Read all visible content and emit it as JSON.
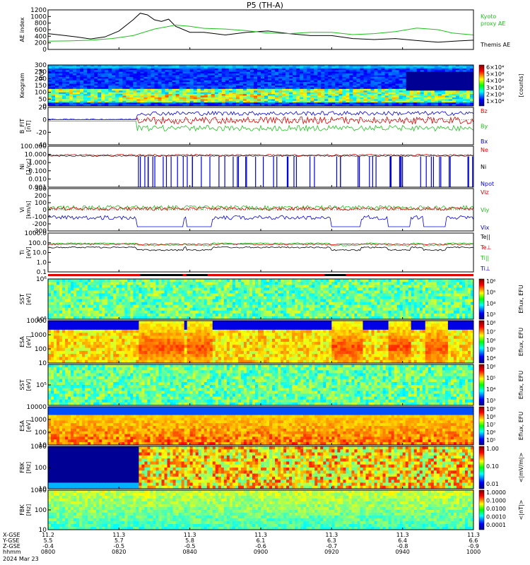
{
  "title": "P5 (TH-A)",
  "colors": {
    "green": "#20c020",
    "black": "#000000",
    "red": "#e00000",
    "blue": "#0000e0",
    "bg": "#ffffff"
  },
  "chart_data": {
    "type": "line",
    "x_ticks": [
      "0800",
      "0820",
      "0840",
      "0900",
      "0920",
      "0940",
      "1000"
    ],
    "footer": {
      "rows": [
        {
          "label": "X-GSE",
          "values": [
            "11.2",
            "11.3",
            "11.3",
            "11.3",
            "11.3",
            "11.3",
            "11.3"
          ]
        },
        {
          "label": "Y-GSE",
          "values": [
            "5.5",
            "5.7",
            "5.8",
            "6.1",
            "6.3",
            "6.4",
            "6.6"
          ]
        },
        {
          "label": "Z-GSE",
          "values": [
            "-0.4",
            "-0.5",
            "-0.5",
            "-0.6",
            "-0.7",
            "-0.8",
            "-0.9"
          ]
        },
        {
          "label": "hhmm",
          "values": [
            "0800",
            "0820",
            "0840",
            "0900",
            "0920",
            "0940",
            "1000"
          ]
        }
      ],
      "date": "2024 Mar 23"
    },
    "panels": [
      {
        "name": "AE index",
        "ylabel": "AE index",
        "ticks": [
          "1200",
          "1000",
          "800",
          "600",
          "400",
          "200",
          "0"
        ],
        "ylim": [
          0,
          1200
        ],
        "legend": [
          {
            "text": "Kyoto",
            "color": "#20c020"
          },
          {
            "text": "proxy AE",
            "color": "#20c020"
          },
          {
            "text": "Themis AE",
            "color": "#000000"
          }
        ],
        "series": [
          {
            "name": "Themis AE",
            "color": "#000000",
            "x": [
              0,
              4,
              8,
              12,
              16,
              20,
              24,
              26,
              28,
              30,
              32,
              34,
              36,
              40,
              44,
              50,
              56,
              62,
              68,
              74,
              80,
              86,
              92,
              98,
              104,
              110,
              116,
              120
            ],
            "y": [
              480,
              430,
              380,
              320,
              380,
              560,
              900,
              1100,
              1050,
              900,
              850,
              920,
              700,
              520,
              520,
              440,
              520,
              560,
              480,
              420,
              420,
              330,
              300,
              330,
              270,
              220,
              260,
              280
            ]
          },
          {
            "name": "Kyoto proxy AE",
            "color": "#20c020",
            "x": [
              0,
              6,
              12,
              18,
              24,
              30,
              36,
              40,
              44,
              50,
              56,
              62,
              68,
              74,
              80,
              86,
              92,
              98,
              104,
              110,
              114,
              120
            ],
            "y": [
              250,
              260,
              280,
              330,
              420,
              620,
              740,
              700,
              640,
              620,
              570,
              500,
              480,
              520,
              520,
              450,
              480,
              540,
              650,
              600,
              500,
              440
            ]
          }
        ]
      },
      {
        "name": "Keogram",
        "ylabel": "Keogram",
        "ticks": [
          "300",
          "250",
          "200",
          "150",
          "100",
          "50",
          "0"
        ],
        "ylim": [
          0,
          300
        ],
        "top_label": "ROI",
        "colorbar": {
          "labels": [
            "6×10⁴",
            "5×10⁴",
            "4×10⁴",
            "3×10⁴",
            "2×10⁴",
            "1×10⁴"
          ],
          "unit": "[counts]"
        }
      },
      {
        "name": "B FIT",
        "ylabel": "B_FIT",
        "units": "[nT]",
        "ticks": [
          "20",
          "0",
          "-20",
          "-40"
        ],
        "ylim": [
          -40,
          20
        ],
        "legend": [
          {
            "text": "Bz",
            "color": "#e00000"
          },
          {
            "text": "By",
            "color": "#20c020"
          },
          {
            "text": "Bx",
            "color": "#0000e0"
          }
        ]
      },
      {
        "name": "Ni",
        "ylabel": "Ni",
        "units": "[1/cc]",
        "ticks": [
          "100.000",
          "10.000",
          "1.000",
          "0.100",
          "0.010",
          "0.001"
        ],
        "ylim": [
          0.001,
          100
        ],
        "legend": [
          {
            "text": "Ne",
            "color": "#e00000"
          },
          {
            "text": "Ni",
            "color": "#000000"
          },
          {
            "text": "Npot",
            "color": "#0000e0"
          }
        ]
      },
      {
        "name": "Vi",
        "ylabel": "Vi",
        "units": "[km/s]",
        "ticks": [
          "300",
          "200",
          "100",
          "0",
          "-100",
          "-200",
          "-300"
        ],
        "ylim": [
          -300,
          300
        ],
        "legend": [
          {
            "text": "Viz",
            "color": "#e00000"
          },
          {
            "text": "Viy",
            "color": "#20c020"
          },
          {
            "text": "Vix",
            "color": "#0000e0"
          }
        ]
      },
      {
        "name": "Ti",
        "ylabel": "Ti",
        "units": "[eV]",
        "ticks": [
          "1000.0",
          "100.0",
          "10.0",
          "1.0",
          "0.1"
        ],
        "ylim": [
          0.1,
          1000
        ],
        "legend": [
          {
            "text": "Te||",
            "color": "#000000"
          },
          {
            "text": "Te⊥",
            "color": "#e00000"
          },
          {
            "text": "Ti||",
            "color": "#20c020"
          },
          {
            "text": "Ti⊥",
            "color": "#0000e0"
          }
        ]
      },
      {
        "name": "SST ion",
        "ylabel": "SST",
        "units": "[eV]",
        "ticks": [
          "10⁶",
          "10⁵"
        ],
        "colorbar": {
          "labels": [
            "10⁶",
            "10⁵",
            "10⁴",
            "10³"
          ],
          "unit": "Eflux, EFU"
        }
      },
      {
        "name": "ESA ion",
        "ylabel": "ESA",
        "units": "[eV]",
        "ticks": [
          "10000",
          "1000",
          "100",
          "10"
        ],
        "colorbar": {
          "labels": [
            "10⁸",
            "10⁷",
            "10⁶",
            "10⁵",
            "10⁴"
          ],
          "unit": "Eflux, EFU"
        }
      },
      {
        "name": "SST elec",
        "ylabel": "SST",
        "units": "[eV]",
        "ticks": [
          "10⁵"
        ],
        "colorbar": {
          "labels": [
            "10⁶",
            "10⁵",
            "10⁴",
            "10³"
          ],
          "unit": "Eflux, EFU"
        }
      },
      {
        "name": "ESA elec",
        "ylabel": "ESA",
        "units": "[eV]",
        "ticks": [
          "10000",
          "1000",
          "100",
          "10"
        ],
        "colorbar": {
          "labels": [
            "10⁹",
            "10⁸",
            "10⁷",
            "10⁶",
            "10⁵"
          ],
          "unit": "Eflux, EFU"
        }
      },
      {
        "name": "FBK E",
        "ylabel": "FBK",
        "units": "[Hz]",
        "ticks": [
          "1000",
          "100",
          "10"
        ],
        "colorbar": {
          "labels": [
            "1.00",
            "0.10",
            "0.01"
          ],
          "unit": "<|mV/m|>"
        }
      },
      {
        "name": "FBK B",
        "ylabel": "FBK",
        "units": "[Hz]",
        "ticks": [
          "1000",
          "100",
          "10"
        ],
        "colorbar": {
          "labels": [
            "1.0000",
            "0.1000",
            "0.0100",
            "0.0010",
            "0.0001"
          ],
          "unit": "<|nT|>"
        }
      }
    ]
  }
}
